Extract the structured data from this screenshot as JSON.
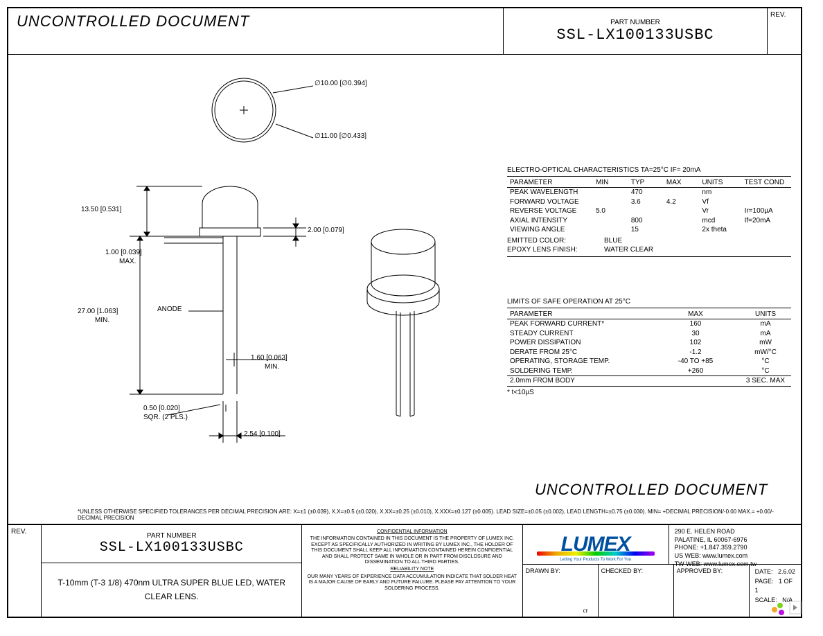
{
  "header": {
    "uncontrolled": "UNCONTROLLED  DOCUMENT",
    "part_label": "PART NUMBER",
    "part_number": "SSL-LX100133USBC",
    "rev_label": "REV."
  },
  "dims": {
    "d_top": "∅10.00  [∅0.394]",
    "d_flange": "∅11.00  [∅0.433]",
    "body_h": "13.50 [0.531]",
    "flange_h": "2.00  [0.079]",
    "standoff": "1.00 [0.039]",
    "standoff_sub": "MAX.",
    "lead_len": "27.00 [1.063]",
    "lead_len_sub": "MIN.",
    "anode": "ANODE",
    "pitch": "2.54  [0.100]",
    "between": "1.60  [0.063]",
    "between_sub": "MIN.",
    "sq": "0.50 [0.020]",
    "sq_sub": "SQR. (2 PLS.)"
  },
  "char": {
    "title": "ELECTRO-OPTICAL CHARACTERISTICS TA=25°C      IF= 20mA",
    "columns": [
      "PARAMETER",
      "MIN",
      "TYP",
      "MAX",
      "UNITS",
      "TEST COND"
    ],
    "rows": [
      [
        "PEAK WAVELENGTH",
        "",
        "470",
        "",
        "nm",
        ""
      ],
      [
        "FORWARD VOLTAGE",
        "",
        "3.6",
        "4.2",
        "Vf",
        ""
      ],
      [
        "REVERSE VOLTAGE",
        "5.0",
        "",
        "",
        "Vr",
        "Ir=100µA"
      ],
      [
        "AXIAL INTENSITY",
        "",
        "800",
        "",
        "mcd",
        "If=20mA"
      ],
      [
        "VIEWING ANGLE",
        "",
        "15",
        "",
        "2x theta",
        ""
      ]
    ],
    "extra": [
      [
        "EMITTED COLOR:",
        "BLUE"
      ],
      [
        "EPOXY LENS FINISH:",
        "WATER CLEAR"
      ]
    ]
  },
  "limits": {
    "title": "LIMITS OF SAFE OPERATION AT 25°C",
    "columns": [
      "PARAMETER",
      "MAX",
      "UNITS"
    ],
    "rows": [
      [
        "PEAK FORWARD CURRENT*",
        "160",
        "mA"
      ],
      [
        "STEADY CURRENT",
        "30",
        "mA"
      ],
      [
        "POWER DISSIPATION",
        "102",
        "mW"
      ],
      [
        "DERATE FROM 25°C",
        "-1.2",
        "mW/°C"
      ],
      [
        "OPERATING, STORAGE TEMP.",
        "-40 TO +85",
        "°C"
      ],
      [
        "SOLDERING TEMP.",
        "+260",
        "°C"
      ]
    ],
    "footer_row": [
      "2.0mm FROM BODY",
      "",
      "3 SEC. MAX"
    ],
    "note": "* t<10µS"
  },
  "tolerances": "*UNLESS OTHERWISE SPECIFIED TOLERANCES PER DECIMAL PRECISION ARE: X=±1 (±0.039), X.X=±0.5 (±0.020), X.XX=±0.25 (±0.010), X.XXX=±0.127 (±0.005).  LEAD SIZE=±0.05 (±0.002), LEAD LENGTH=±0.75 (±0.030).  MIN= +DECIMAL PRECISION/-0.00   MAX.= +0.00/-DECIMAL PRECISION",
  "footer": {
    "rev": "REV.",
    "part_label": "PART NUMBER",
    "part_number": "SSL-LX100133USBC",
    "desc": "T-10mm (T-3 1/8) 470nm ULTRA SUPER BLUE LED, WATER CLEAR LENS.",
    "conf_title": "CONFIDENTIAL INFORMATION",
    "conf_body": "THE INFORMATION CONTAINED IN THIS DOCUMENT IS THE PROPERTY OF LUMEX INC.  EXCEPT AS SPECIFICALLY AUTHORIZED IN WRITING BY LUMEX INC., THE HOLDER OF THIS DOCUMENT SHALL KEEP ALL INFORMATION CONTAINED HEREIN CONFIDENTIAL AND SHALL PROTECT SAME IN WHOLE OR IN PART FROM DISCLOSURE AND DISSEMINATION TO ALL THIRD PARTIES.",
    "rel_title": "RELIABILITY NOTE",
    "rel_body": "OUR MANY YEARS OF EXPERIENCE DATA ACCUMULATION INDICATE THAT SOLDER HEAT IS A MAJOR CAUSE OF EARLY AND FUTURE FAILURE. PLEASE PAY ATTENTION TO YOUR SOLDERING PROCESS.",
    "logo": "LUMEX",
    "logo_sub": "Letting Your Products To Work For You",
    "addr1": "290 E. HELEN ROAD",
    "addr2": "PALATINE, IL  60067-6976",
    "addr3": "PHONE:  +1.847.359.2790",
    "addr4": "US WEB:  www.lumex.com",
    "addr5": "TW WEB:  www.lumex.com.tw",
    "drawn_lbl": "DRAWN BY:",
    "drawn_by": "cr",
    "checked_lbl": "CHECKED BY:",
    "approved_lbl": "APPROVED BY:",
    "date_lbl": "DATE:",
    "date": "2.6.02",
    "page_lbl": "PAGE:",
    "page": "1 OF 1",
    "scale_lbl": "SCALE:",
    "scale": "N/A"
  }
}
